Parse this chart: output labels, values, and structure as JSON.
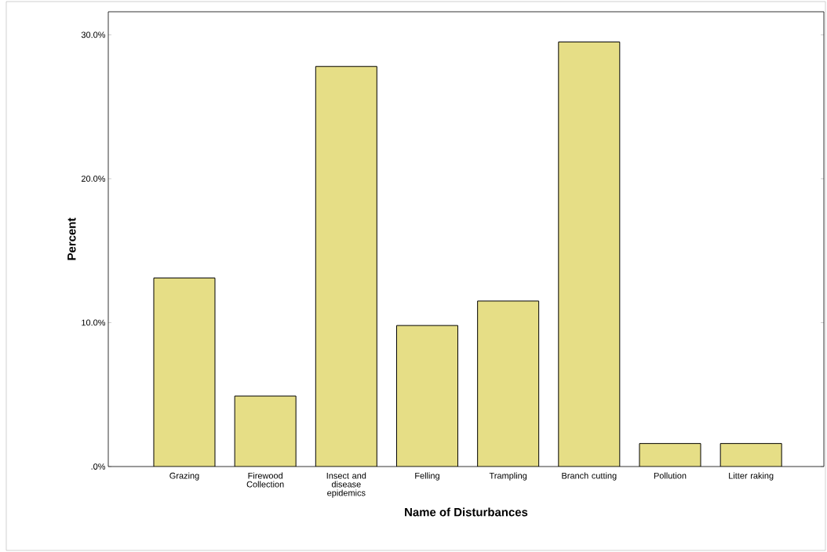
{
  "chart_data": {
    "type": "bar",
    "xlabel": "Name of Disturbances",
    "ylabel": "Percent",
    "categories": [
      "Grazing",
      "Firewood Collection",
      "Insect and disease epidemics",
      "Felling",
      "Trampling",
      "Branch cutting",
      "Pollution",
      "Litter raking"
    ],
    "values": [
      13.1,
      4.9,
      27.8,
      9.8,
      11.5,
      29.5,
      1.6,
      1.6
    ],
    "color": "#e6de86",
    "ylim": [
      0,
      31.6
    ],
    "yticks": [
      {
        "value": 0,
        "label": ".0%"
      },
      {
        "value": 10,
        "label": "10.0%"
      },
      {
        "value": 20,
        "label": "20.0%"
      },
      {
        "value": 30,
        "label": "30.0%"
      }
    ],
    "grid": false
  }
}
